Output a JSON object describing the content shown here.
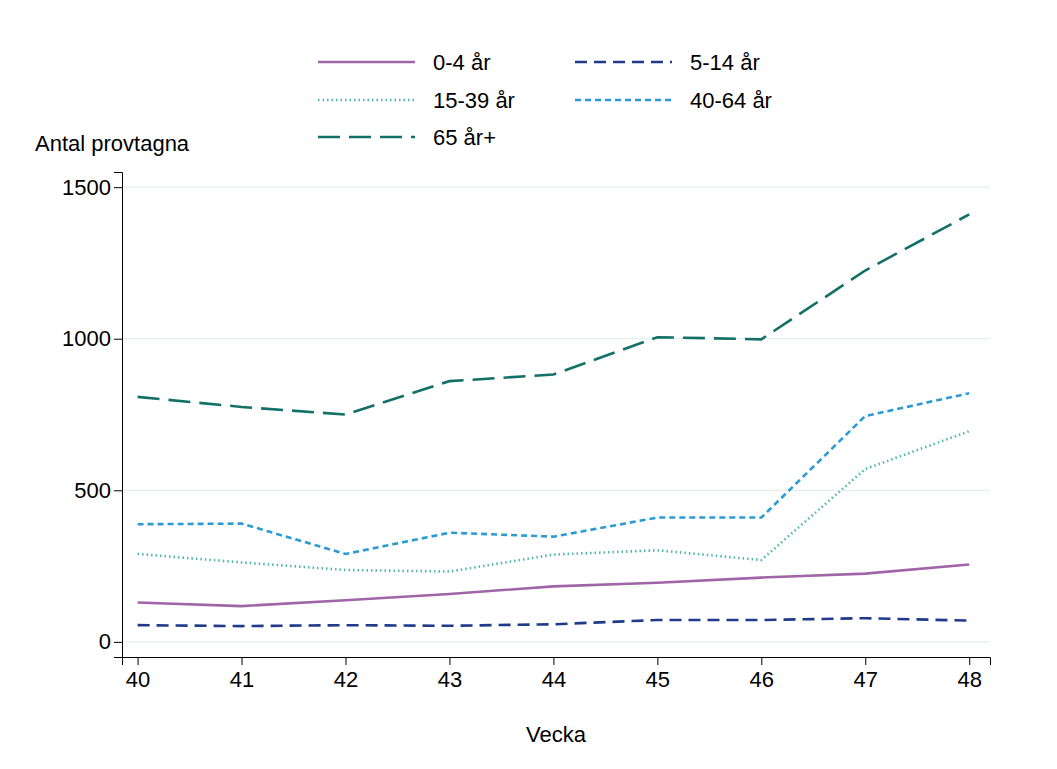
{
  "chart_data": {
    "type": "line",
    "y_label": "Antal provtagna",
    "x_label": "Vecka",
    "x": [
      40,
      41,
      42,
      43,
      44,
      45,
      46,
      47,
      48
    ],
    "xlim": [
      39.85,
      48.2
    ],
    "xticks": [
      40,
      41,
      42,
      43,
      44,
      45,
      46,
      47,
      48
    ],
    "ylim": [
      -50,
      1550
    ],
    "yticks": [
      0,
      500,
      1000,
      1500
    ],
    "grid": true,
    "legend": "top",
    "series": [
      {
        "name": "0-4 år",
        "color": "#a064a8",
        "line_style": "solid",
        "values": [
          130,
          118,
          137,
          158,
          183,
          195,
          212,
          225,
          255
        ]
      },
      {
        "name": "5-14 år",
        "color": "#1f3b8a",
        "line_style": "dashed",
        "values": [
          55,
          52,
          55,
          53,
          58,
          72,
          72,
          78,
          70
        ]
      },
      {
        "name": "15-39 år",
        "color": "#52b7a6",
        "line_style": "dotted",
        "values": [
          290,
          262,
          237,
          232,
          288,
          302,
          270,
          570,
          695
        ]
      },
      {
        "name": "40-64 år",
        "color": "#2b9bd3",
        "line_style": "shortdash",
        "values": [
          388,
          390,
          290,
          360,
          347,
          410,
          410,
          745,
          820
        ]
      },
      {
        "name": "65 år+",
        "color": "#137066",
        "line_style": "longdash",
        "values": [
          808,
          775,
          750,
          860,
          882,
          1005,
          998,
          1225,
          1410
        ]
      }
    ]
  }
}
